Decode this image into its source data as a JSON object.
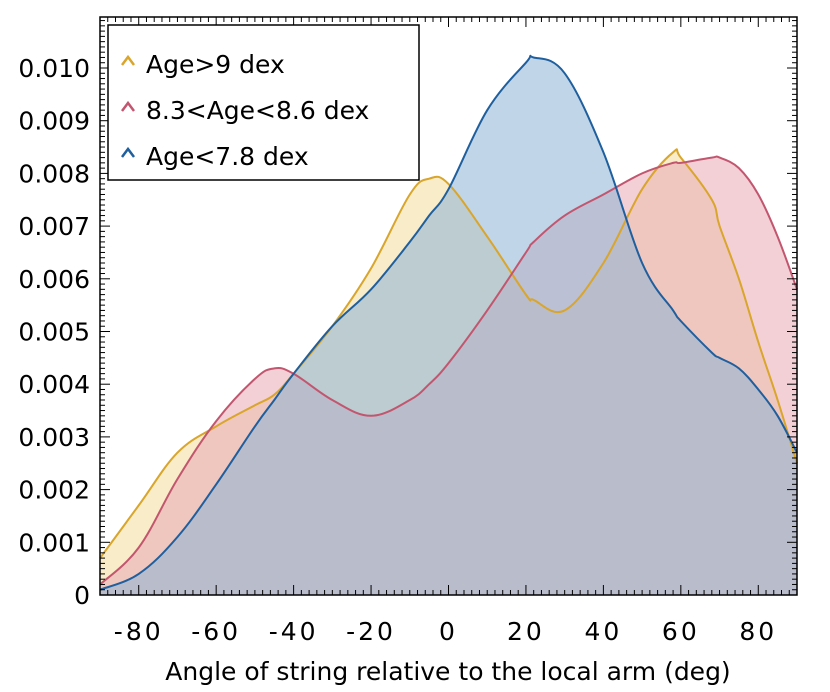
{
  "chart_data": {
    "type": "area",
    "xlabel": "Angle of string relative to the local arm (deg)",
    "ylabel": "",
    "xlim": [
      -90,
      90
    ],
    "ylim": [
      0,
      0.011
    ],
    "x_ticks": [
      -80,
      -60,
      -40,
      -20,
      0,
      20,
      40,
      60,
      80
    ],
    "x_tick_labels": [
      "-80",
      "-60",
      "-40",
      "-20",
      "0",
      "20",
      "40",
      "60",
      "80"
    ],
    "y_ticks": [
      0,
      0.001,
      0.002,
      0.003,
      0.004,
      0.005,
      0.006,
      0.007,
      0.008,
      0.009,
      0.01
    ],
    "y_tick_labels": [
      "0",
      "0.001",
      "0.002",
      "0.003",
      "0.004",
      "0.005",
      "0.006",
      "0.007",
      "0.008",
      "0.009",
      "0.010"
    ],
    "grid": false,
    "legend_position": "top-left",
    "x": [
      -90,
      -80,
      -70,
      -60,
      -50,
      -45,
      -40,
      -30,
      -20,
      -10,
      -5,
      0,
      10,
      20,
      22,
      30,
      40,
      50,
      58,
      60,
      68,
      70,
      75,
      80,
      85,
      90
    ],
    "series": [
      {
        "name": "Age>9 dex",
        "color": "#d9a52b",
        "fill": "#f2dc9c",
        "values": [
          0.0007,
          0.0017,
          0.0027,
          0.0032,
          0.0036,
          0.0038,
          0.0042,
          0.0051,
          0.0062,
          0.0076,
          0.0079,
          0.0078,
          0.0068,
          0.0057,
          0.0056,
          0.0054,
          0.0063,
          0.0077,
          0.0084,
          0.0083,
          0.0075,
          0.007,
          0.006,
          0.0048,
          0.0037,
          0.0025
        ]
      },
      {
        "name": "8.3<Age<8.6 dex",
        "color": "#c2566f",
        "fill": "#e9a9b5",
        "values": [
          0.0002,
          0.0009,
          0.0022,
          0.0033,
          0.0041,
          0.0043,
          0.0042,
          0.0037,
          0.0034,
          0.0037,
          0.004,
          0.0044,
          0.0054,
          0.0065,
          0.0067,
          0.0072,
          0.0076,
          0.008,
          0.0082,
          0.0082,
          0.0083,
          0.0083,
          0.0081,
          0.0076,
          0.0068,
          0.0058
        ]
      },
      {
        "name": "Age<7.8 dex",
        "color": "#1f5f9e",
        "fill": "#8db3d6",
        "values": [
          0.0001,
          0.0004,
          0.0011,
          0.0021,
          0.0032,
          0.0037,
          0.0042,
          0.0051,
          0.0058,
          0.0067,
          0.0072,
          0.0077,
          0.0092,
          0.0101,
          0.0102,
          0.0099,
          0.0084,
          0.0063,
          0.0054,
          0.0052,
          0.0046,
          0.0045,
          0.0043,
          0.0039,
          0.0034,
          0.0027
        ]
      }
    ]
  }
}
